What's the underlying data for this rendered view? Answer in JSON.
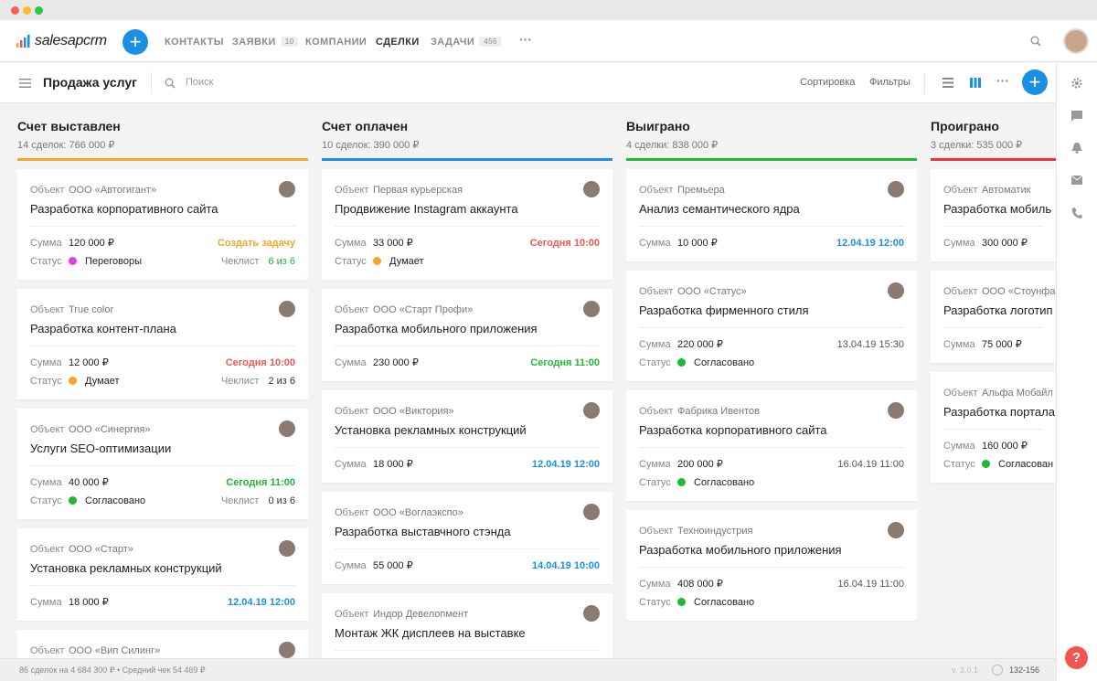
{
  "nav": {
    "logo": "salesapcrm",
    "items": [
      {
        "label": "КОНТАКТЫ"
      },
      {
        "label": "ЗАЯВКИ",
        "badge": "10"
      },
      {
        "label": "КОМПАНИИ"
      },
      {
        "label": "СДЕЛКИ",
        "active": true
      },
      {
        "label": "ЗАДАЧИ",
        "badge": "456"
      }
    ]
  },
  "toolbar": {
    "title": "Продажа услуг",
    "search_placeholder": "Поиск",
    "sort": "Сортировка",
    "filters": "Фильтры"
  },
  "labels": {
    "object": "Объект",
    "sum": "Сумма",
    "status": "Статус",
    "checklist": "Чеклист"
  },
  "columns": [
    {
      "title": "Счет выставлен",
      "summary": "14 сделок: 766 000 ₽",
      "color": "#f5a623",
      "cards": [
        {
          "object": "ООО «Автогигант»",
          "title": "Разработка корпоративного сайта",
          "sum": "120 000 ₽",
          "due": "Создать задачу",
          "due_color": "#f5a623",
          "status": "Переговоры",
          "status_color": "#e040e8",
          "checklist": "6 из 6",
          "checklist_color": "#1bb934"
        },
        {
          "object": "True color",
          "title": "Разработка контент-плана",
          "sum": "12 000 ₽",
          "due": "Сегодня 10:00",
          "due_color": "#f0564f",
          "status": "Думает",
          "status_color": "#f5a623",
          "checklist": "2 из 6",
          "checklist_color": "#333333"
        },
        {
          "object": "ООО «Синергия»",
          "title": "Услуги SEO-оптимизации",
          "sum": "40 000 ₽",
          "due": "Сегодня 11:00",
          "due_color": "#1bb934",
          "status": "Согласовано",
          "status_color": "#1bb934",
          "checklist": "0 из 6",
          "checklist_color": "#333333"
        },
        {
          "object": "ООО «Старт»",
          "title": "Установка рекламных конструкций",
          "sum": "18 000 ₽",
          "due": "12.04.19 12:00",
          "due_color": "#1a8fe3"
        },
        {
          "object": "ООО «Вип Силинг»"
        }
      ]
    },
    {
      "title": "Счет оплачен",
      "summary": "10 сделок: 390 000 ₽",
      "color": "#1a8fe3",
      "cards": [
        {
          "object": "Первая курьерская",
          "title": "Продвижение Instagram аккаунта",
          "sum": "33 000 ₽",
          "due": "Сегодня 10:00",
          "due_color": "#f0564f",
          "status": "Думает",
          "status_color": "#f5a623"
        },
        {
          "object": "ООО «Старт Профи»",
          "title": "Разработка мобильного приложения",
          "sum": "230 000 ₽",
          "due": "Сегодня 11:00",
          "due_color": "#1bb934"
        },
        {
          "object": "ООО «Виктория»",
          "title": "Установка рекламных конструкций",
          "sum": "18 000 ₽",
          "due": "12.04.19 12:00",
          "due_color": "#1a8fe3"
        },
        {
          "object": "ООО «Воглаэкспо»",
          "title": "Разработка выставчного стэнда",
          "sum": "55 000 ₽",
          "due": "14.04.19 10:00",
          "due_color": "#1a8fe3"
        },
        {
          "object": "Индор Девелопмент",
          "title": "Монтаж ЖК дисплеев на выставке"
        }
      ]
    },
    {
      "title": "Выиграно",
      "summary": "4 сделки: 838 000 ₽",
      "color": "#1bb934",
      "cards": [
        {
          "object": "Премьера",
          "title": "Анализ семантического ядра",
          "sum": "10 000 ₽",
          "due": "12.04.19 12:00",
          "due_color": "#1a8fe3"
        },
        {
          "object": "ООО «Статус»",
          "title": "Разработка фирменного стиля",
          "sum": "220 000 ₽",
          "due": "13.04.19 15:30",
          "due_color": "#555555",
          "status": "Согласовано",
          "status_color": "#1bb934"
        },
        {
          "object": "Фабрика Ивентов",
          "title": "Разработка корпоративного сайта",
          "sum": "200 000 ₽",
          "due": "16.04.19 11:00",
          "due_color": "#555555",
          "status": "Согласовано",
          "status_color": "#1bb934"
        },
        {
          "object": "Техноиндустрия",
          "title": "Разработка мобильного приложения",
          "sum": "408 000 ₽",
          "due": "16.04.19 11:00",
          "due_color": "#555555",
          "status": "Согласовано",
          "status_color": "#1bb934"
        }
      ]
    },
    {
      "title": "Проиграно",
      "summary": "3 сделки: 535 000 ₽",
      "color": "#f0303a",
      "cards": [
        {
          "object": "Автоматик",
          "title": "Разработка мобиль",
          "sum": "300 000 ₽"
        },
        {
          "object": "ООО «Стоунфай",
          "title": "Разработка логотип",
          "sum": "75 000 ₽"
        },
        {
          "object": "Альфа Мобайл",
          "title": "Разработка портала",
          "sum": "160 000 ₽",
          "status": "Согласован",
          "status_color": "#1bb934"
        }
      ]
    }
  ],
  "footer": {
    "summary": "86 сделок на 4 684 300 ₽  •  Средний чек 54 469 ₽",
    "version": "v. 3.0.1",
    "range": "132-156"
  }
}
